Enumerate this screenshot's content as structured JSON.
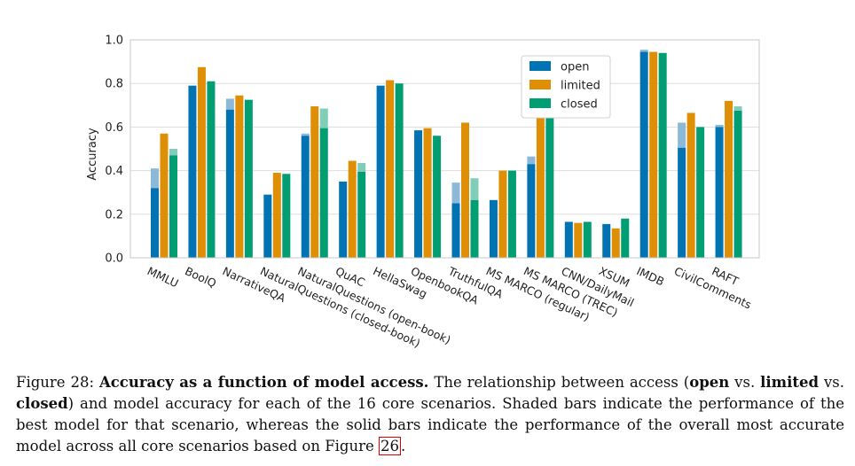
{
  "chart_data": {
    "type": "bar",
    "ylabel": "Accuracy",
    "ylim": [
      0.0,
      1.0
    ],
    "yticks": [
      "0.0",
      "0.2",
      "0.4",
      "0.6",
      "0.8",
      "1.0"
    ],
    "grid": true,
    "legend_position": "top-right",
    "categories": [
      "MMLU",
      "BoolQ",
      "NarrativeQA",
      "NaturalQuestions (closed-book)",
      "NaturalQuestions (open-book)",
      "QuAC",
      "HellaSwag",
      "OpenbookQA",
      "TruthfulQA",
      "MS MARCO (regular)",
      "MS MARCO (TREC)",
      "CNN/DailyMail",
      "XSUM",
      "IMDB",
      "CivilComments",
      "RAFT"
    ],
    "series": [
      {
        "name": "open",
        "color": "#0173b2",
        "shade": "#8db9d8",
        "values": [
          0.32,
          0.79,
          0.68,
          0.29,
          0.56,
          0.35,
          0.79,
          0.585,
          0.25,
          0.265,
          0.43,
          0.165,
          0.155,
          0.945,
          0.505,
          0.6
        ],
        "best": [
          0.41,
          0.79,
          0.73,
          0.29,
          0.57,
          0.35,
          0.79,
          0.585,
          0.345,
          0.265,
          0.465,
          0.165,
          0.155,
          0.955,
          0.62,
          0.61
        ]
      },
      {
        "name": "limited",
        "color": "#de8f05",
        "shade": "#eec582",
        "values": [
          0.57,
          0.875,
          0.745,
          0.39,
          0.695,
          0.445,
          0.815,
          0.595,
          0.62,
          0.4,
          0.655,
          0.16,
          0.135,
          0.945,
          0.665,
          0.72
        ],
        "best": [
          0.57,
          0.875,
          0.745,
          0.39,
          0.695,
          0.445,
          0.815,
          0.595,
          0.62,
          0.4,
          0.655,
          0.16,
          0.135,
          0.945,
          0.665,
          0.72
        ]
      },
      {
        "name": "closed",
        "color": "#029e73",
        "shade": "#80ceb9",
        "values": [
          0.47,
          0.81,
          0.725,
          0.385,
          0.595,
          0.395,
          0.8,
          0.56,
          0.265,
          0.4,
          0.645,
          0.165,
          0.18,
          0.94,
          0.6,
          0.675
        ],
        "best": [
          0.5,
          0.81,
          0.725,
          0.385,
          0.685,
          0.435,
          0.8,
          0.56,
          0.365,
          0.4,
          0.645,
          0.165,
          0.18,
          0.94,
          0.6,
          0.695
        ]
      }
    ]
  },
  "caption": {
    "figure_label": "Figure 28:",
    "title": "Accuracy as a function of model access.",
    "text_1": "The relationship between access (",
    "open": "open",
    "vs1": "vs.",
    "limited": "limited",
    "vs2": "vs.",
    "closed": "closed",
    "text_2": ") and model accuracy for each of the 16 core scenarios. Shaded bars indicate the performance of the best model for that scenario, whereas the solid bars indicate the performance of the overall most accurate model across all core scenarios based on Figure",
    "ref": "26",
    "period": "."
  }
}
